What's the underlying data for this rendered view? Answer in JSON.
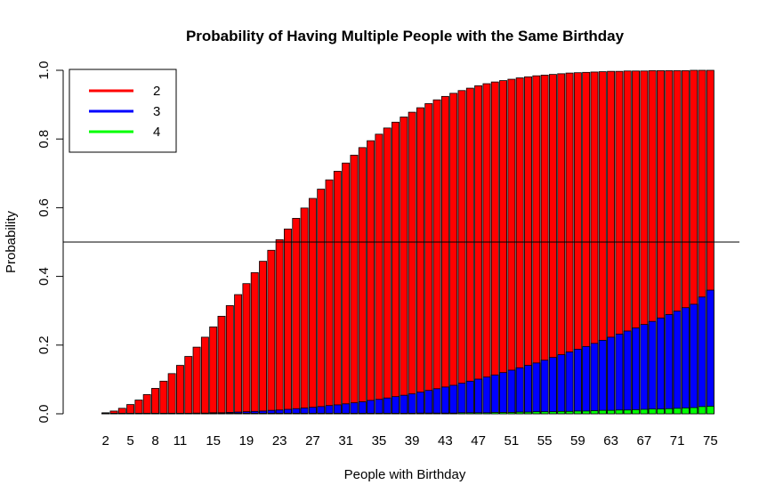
{
  "chart_data": {
    "type": "bar",
    "stacked": false,
    "title": "Probability of Having Multiple People with the Same Birthday",
    "xlabel": "People with Birthday",
    "ylabel": "Probability",
    "ylim": [
      0,
      1
    ],
    "yticks": [
      "0.0",
      "0.2",
      "0.4",
      "0.6",
      "0.8",
      "1.0"
    ],
    "x_start": 2,
    "x_end": 75,
    "xtick_labels": [
      "2",
      "5",
      "8",
      "11",
      "15",
      "19",
      "23",
      "27",
      "31",
      "35",
      "39",
      "43",
      "47",
      "51",
      "55",
      "59",
      "63",
      "67",
      "71",
      "75"
    ],
    "reference_line": 0.5,
    "grid": false,
    "legend_position": "top-left",
    "series": [
      {
        "name": "2",
        "color": "#ff0000",
        "values": [
          0.003,
          0.008,
          0.016,
          0.027,
          0.04,
          0.056,
          0.074,
          0.095,
          0.117,
          0.141,
          0.167,
          0.194,
          0.223,
          0.253,
          0.284,
          0.315,
          0.347,
          0.379,
          0.411,
          0.444,
          0.476,
          0.507,
          0.538,
          0.569,
          0.599,
          0.627,
          0.654,
          0.681,
          0.706,
          0.73,
          0.753,
          0.775,
          0.795,
          0.814,
          0.832,
          0.849,
          0.864,
          0.878,
          0.891,
          0.903,
          0.914,
          0.924,
          0.933,
          0.941,
          0.948,
          0.955,
          0.961,
          0.966,
          0.97,
          0.974,
          0.978,
          0.981,
          0.984,
          0.986,
          0.988,
          0.99,
          0.992,
          0.993,
          0.994,
          0.995,
          0.996,
          0.997,
          0.997,
          0.998,
          0.998,
          0.998,
          0.999,
          0.999,
          0.999,
          0.999,
          0.999,
          1.0,
          1.0,
          1.0
        ]
      },
      {
        "name": "3",
        "color": "#0000ff",
        "values": [
          0.0,
          0.0,
          0.0,
          0.0,
          0.0,
          0.0,
          0.0,
          0.0,
          0.001,
          0.001,
          0.001,
          0.002,
          0.002,
          0.003,
          0.003,
          0.004,
          0.005,
          0.006,
          0.007,
          0.008,
          0.01,
          0.011,
          0.013,
          0.015,
          0.017,
          0.019,
          0.021,
          0.024,
          0.026,
          0.029,
          0.032,
          0.035,
          0.039,
          0.042,
          0.046,
          0.05,
          0.054,
          0.058,
          0.063,
          0.068,
          0.073,
          0.078,
          0.083,
          0.089,
          0.095,
          0.101,
          0.107,
          0.113,
          0.12,
          0.127,
          0.134,
          0.141,
          0.148,
          0.156,
          0.164,
          0.172,
          0.18,
          0.188,
          0.196,
          0.205,
          0.214,
          0.223,
          0.232,
          0.241,
          0.25,
          0.26,
          0.269,
          0.279,
          0.289,
          0.299,
          0.309,
          0.319,
          0.34,
          0.36
        ]
      },
      {
        "name": "4",
        "color": "#00ff00",
        "values": [
          0.0,
          0.0,
          0.0,
          0.0,
          0.0,
          0.0,
          0.0,
          0.0,
          0.0,
          0.0,
          0.0,
          0.0,
          0.0,
          0.0,
          0.0,
          0.0,
          0.0,
          0.0,
          0.0,
          0.0,
          0.0,
          0.0,
          0.0,
          0.0,
          0.0,
          0.0,
          0.0,
          0.0,
          0.0,
          0.0,
          0.001,
          0.001,
          0.001,
          0.001,
          0.001,
          0.001,
          0.001,
          0.001,
          0.002,
          0.002,
          0.002,
          0.002,
          0.002,
          0.003,
          0.003,
          0.003,
          0.003,
          0.004,
          0.004,
          0.004,
          0.005,
          0.005,
          0.006,
          0.006,
          0.006,
          0.007,
          0.007,
          0.008,
          0.008,
          0.009,
          0.01,
          0.01,
          0.011,
          0.011,
          0.012,
          0.013,
          0.014,
          0.014,
          0.015,
          0.016,
          0.017,
          0.018,
          0.021,
          0.022
        ]
      }
    ]
  }
}
